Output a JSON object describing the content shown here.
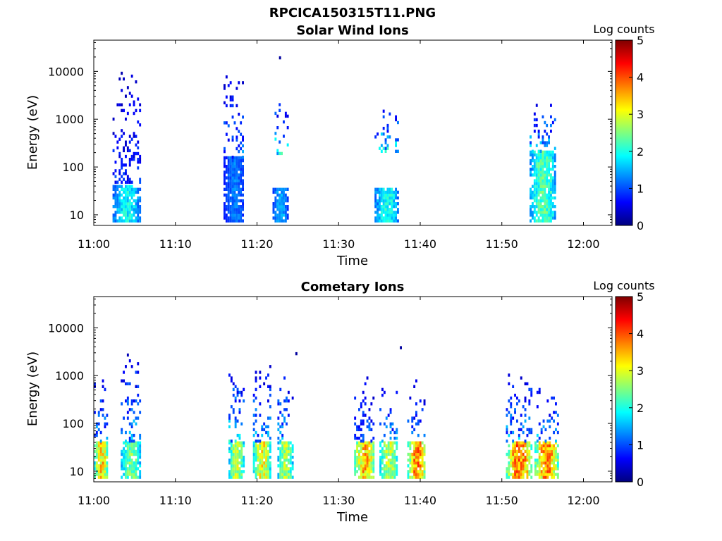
{
  "figure_title": "RPCICA150315T11.PNG",
  "colorscale": [
    "#00007f",
    "#0000ff",
    "#007fff",
    "#00ffff",
    "#7fff7f",
    "#ffff00",
    "#ff7f00",
    "#ff0000",
    "#7f0000"
  ],
  "chart_data": [
    {
      "type": "heatmap",
      "title": "Solar Wind Ions",
      "xlabel": "Time",
      "ylabel": "Energy (eV)",
      "colorbar_label": "Log counts",
      "x_ticks": [
        "11:00",
        "11:10",
        "11:20",
        "11:30",
        "11:40",
        "11:50",
        "12:00"
      ],
      "x_range_minutes": [
        0,
        63.5
      ],
      "y_ticks": [
        "10",
        "100",
        "1000",
        "10000"
      ],
      "y_scale": "log",
      "y_range": [
        6,
        45000
      ],
      "c_ticks": [
        "0",
        "1",
        "2",
        "3",
        "4",
        "5"
      ],
      "c_range": [
        0,
        5
      ],
      "bursts": [
        {
          "start_min": 2.3,
          "end_min": 5.6,
          "low_peak": 2.0,
          "low_top_eV": 40,
          "high_lo_eV": 45,
          "high_hi_eV": 14000,
          "high_peak": 1.0
        },
        {
          "start_min": 15.9,
          "end_min": 18.4,
          "low_peak": 1.3,
          "low_top_eV": 150,
          "high_lo_eV": 150,
          "high_hi_eV": 8000,
          "high_peak": 1.4
        },
        {
          "start_min": 21.9,
          "end_min": 23.7,
          "low_peak": 1.6,
          "low_top_eV": 35,
          "high_lo_eV": 180,
          "high_hi_eV": 2000,
          "high_peak": 2.1
        },
        {
          "start_min": 34.4,
          "end_min": 37.3,
          "low_peak": 2.1,
          "low_top_eV": 35,
          "high_lo_eV": 200,
          "high_hi_eV": 1500,
          "high_peak": 2.1
        },
        {
          "start_min": 53.4,
          "end_min": 56.6,
          "low_peak": 2.4,
          "low_top_eV": 200,
          "high_lo_eV": 200,
          "high_hi_eV": 2000,
          "high_peak": 1.8
        }
      ],
      "outliers": [
        {
          "min": 22.7,
          "eV": 18000
        }
      ]
    },
    {
      "type": "heatmap",
      "title": "Cometary Ions",
      "xlabel": "Time",
      "ylabel": "Energy (eV)",
      "colorbar_label": "Log counts",
      "x_ticks": [
        "11:00",
        "11:10",
        "11:20",
        "11:30",
        "11:40",
        "11:50",
        "12:00"
      ],
      "x_range_minutes": [
        0,
        63.5
      ],
      "y_ticks": [
        "10",
        "100",
        "1000",
        "10000"
      ],
      "y_scale": "log",
      "y_range": [
        6,
        45000
      ],
      "c_ticks": [
        "0",
        "1",
        "2",
        "3",
        "4",
        "5"
      ],
      "c_range": [
        0,
        5
      ],
      "bursts": [
        {
          "start_min": 0.0,
          "end_min": 1.7,
          "low_peak": 3.5,
          "low_top_eV": 40,
          "high_lo_eV": 40,
          "high_hi_eV": 1000,
          "high_peak": 1.6
        },
        {
          "start_min": 3.3,
          "end_min": 5.7,
          "low_peak": 2.6,
          "low_top_eV": 40,
          "high_lo_eV": 40,
          "high_hi_eV": 2600,
          "high_peak": 1.7
        },
        {
          "start_min": 16.5,
          "end_min": 18.3,
          "low_peak": 3.0,
          "low_top_eV": 40,
          "high_lo_eV": 40,
          "high_hi_eV": 1200,
          "high_peak": 2.0
        },
        {
          "start_min": 19.5,
          "end_min": 21.6,
          "low_peak": 3.3,
          "low_top_eV": 40,
          "high_lo_eV": 40,
          "high_hi_eV": 1700,
          "high_peak": 1.6
        },
        {
          "start_min": 22.5,
          "end_min": 24.3,
          "low_peak": 2.9,
          "low_top_eV": 40,
          "high_lo_eV": 40,
          "high_hi_eV": 1000,
          "high_peak": 1.7
        },
        {
          "start_min": 31.9,
          "end_min": 34.4,
          "low_peak": 3.7,
          "low_top_eV": 40,
          "high_lo_eV": 40,
          "high_hi_eV": 900,
          "high_peak": 1.4
        },
        {
          "start_min": 35.0,
          "end_min": 37.2,
          "low_peak": 3.0,
          "low_top_eV": 40,
          "high_lo_eV": 40,
          "high_hi_eV": 600,
          "high_peak": 1.6
        },
        {
          "start_min": 38.4,
          "end_min": 40.6,
          "low_peak": 3.9,
          "low_top_eV": 40,
          "high_lo_eV": 40,
          "high_hi_eV": 1000,
          "high_peak": 1.3
        },
        {
          "start_min": 50.5,
          "end_min": 53.6,
          "low_peak": 4.0,
          "low_top_eV": 40,
          "high_lo_eV": 40,
          "high_hi_eV": 1000,
          "high_peak": 1.7
        },
        {
          "start_min": 54.0,
          "end_min": 56.8,
          "low_peak": 3.9,
          "low_top_eV": 40,
          "high_lo_eV": 40,
          "high_hi_eV": 500,
          "high_peak": 1.7
        }
      ],
      "outliers": [
        {
          "min": 24.7,
          "eV": 2700
        },
        {
          "min": 37.5,
          "eV": 3600
        }
      ]
    }
  ]
}
